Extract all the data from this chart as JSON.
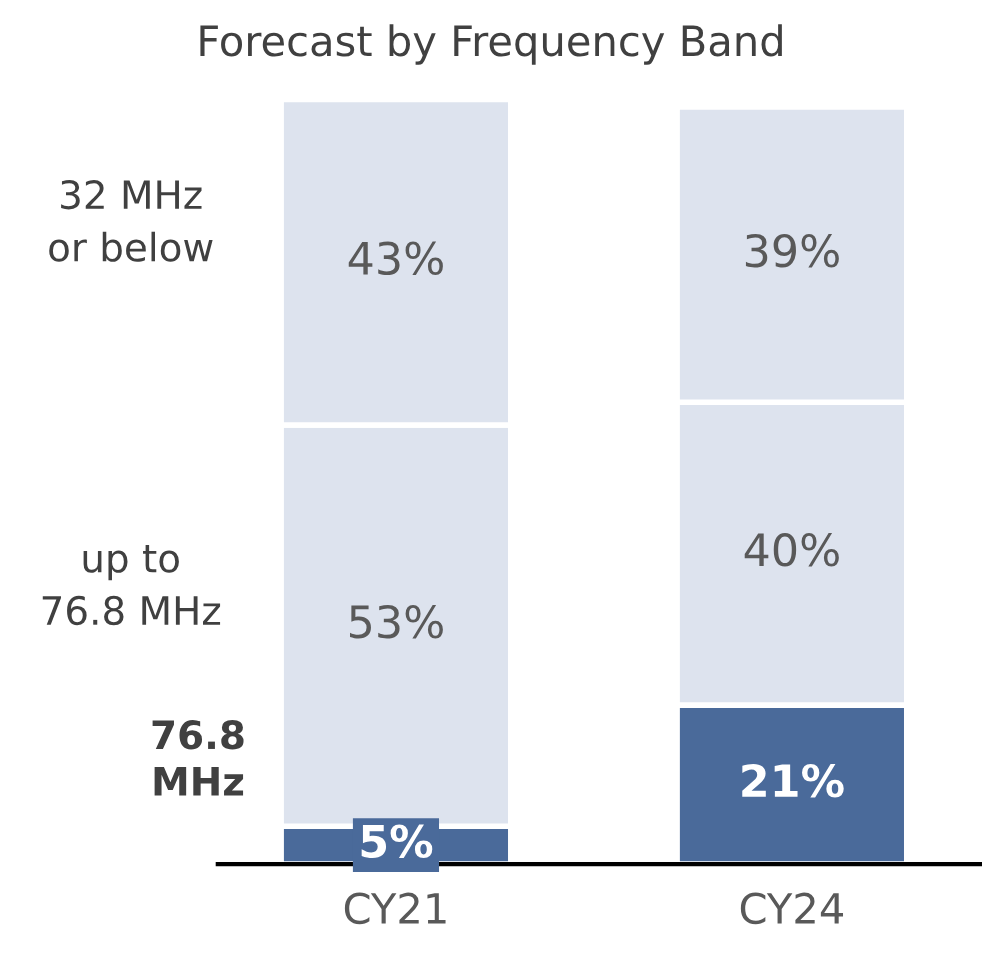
{
  "chart_data": {
    "type": "bar",
    "title": "Forecast by Frequency Band",
    "stacked": true,
    "categories": [
      "CY21",
      "CY24"
    ],
    "series": [
      {
        "name": "76.8 MHz",
        "color": "#4a6a9a",
        "values": [
          5,
          21
        ],
        "value_labels": [
          "5%",
          "21%"
        ]
      },
      {
        "name": "up to 76.8 MHz",
        "color": "#dde3ee",
        "values": [
          53,
          40
        ],
        "value_labels": [
          "53%",
          "40%"
        ]
      },
      {
        "name": "32 MHz or below",
        "color": "#dde3ee",
        "values": [
          43,
          39
        ],
        "value_labels": [
          "43%",
          "39%"
        ]
      }
    ]
  }
}
